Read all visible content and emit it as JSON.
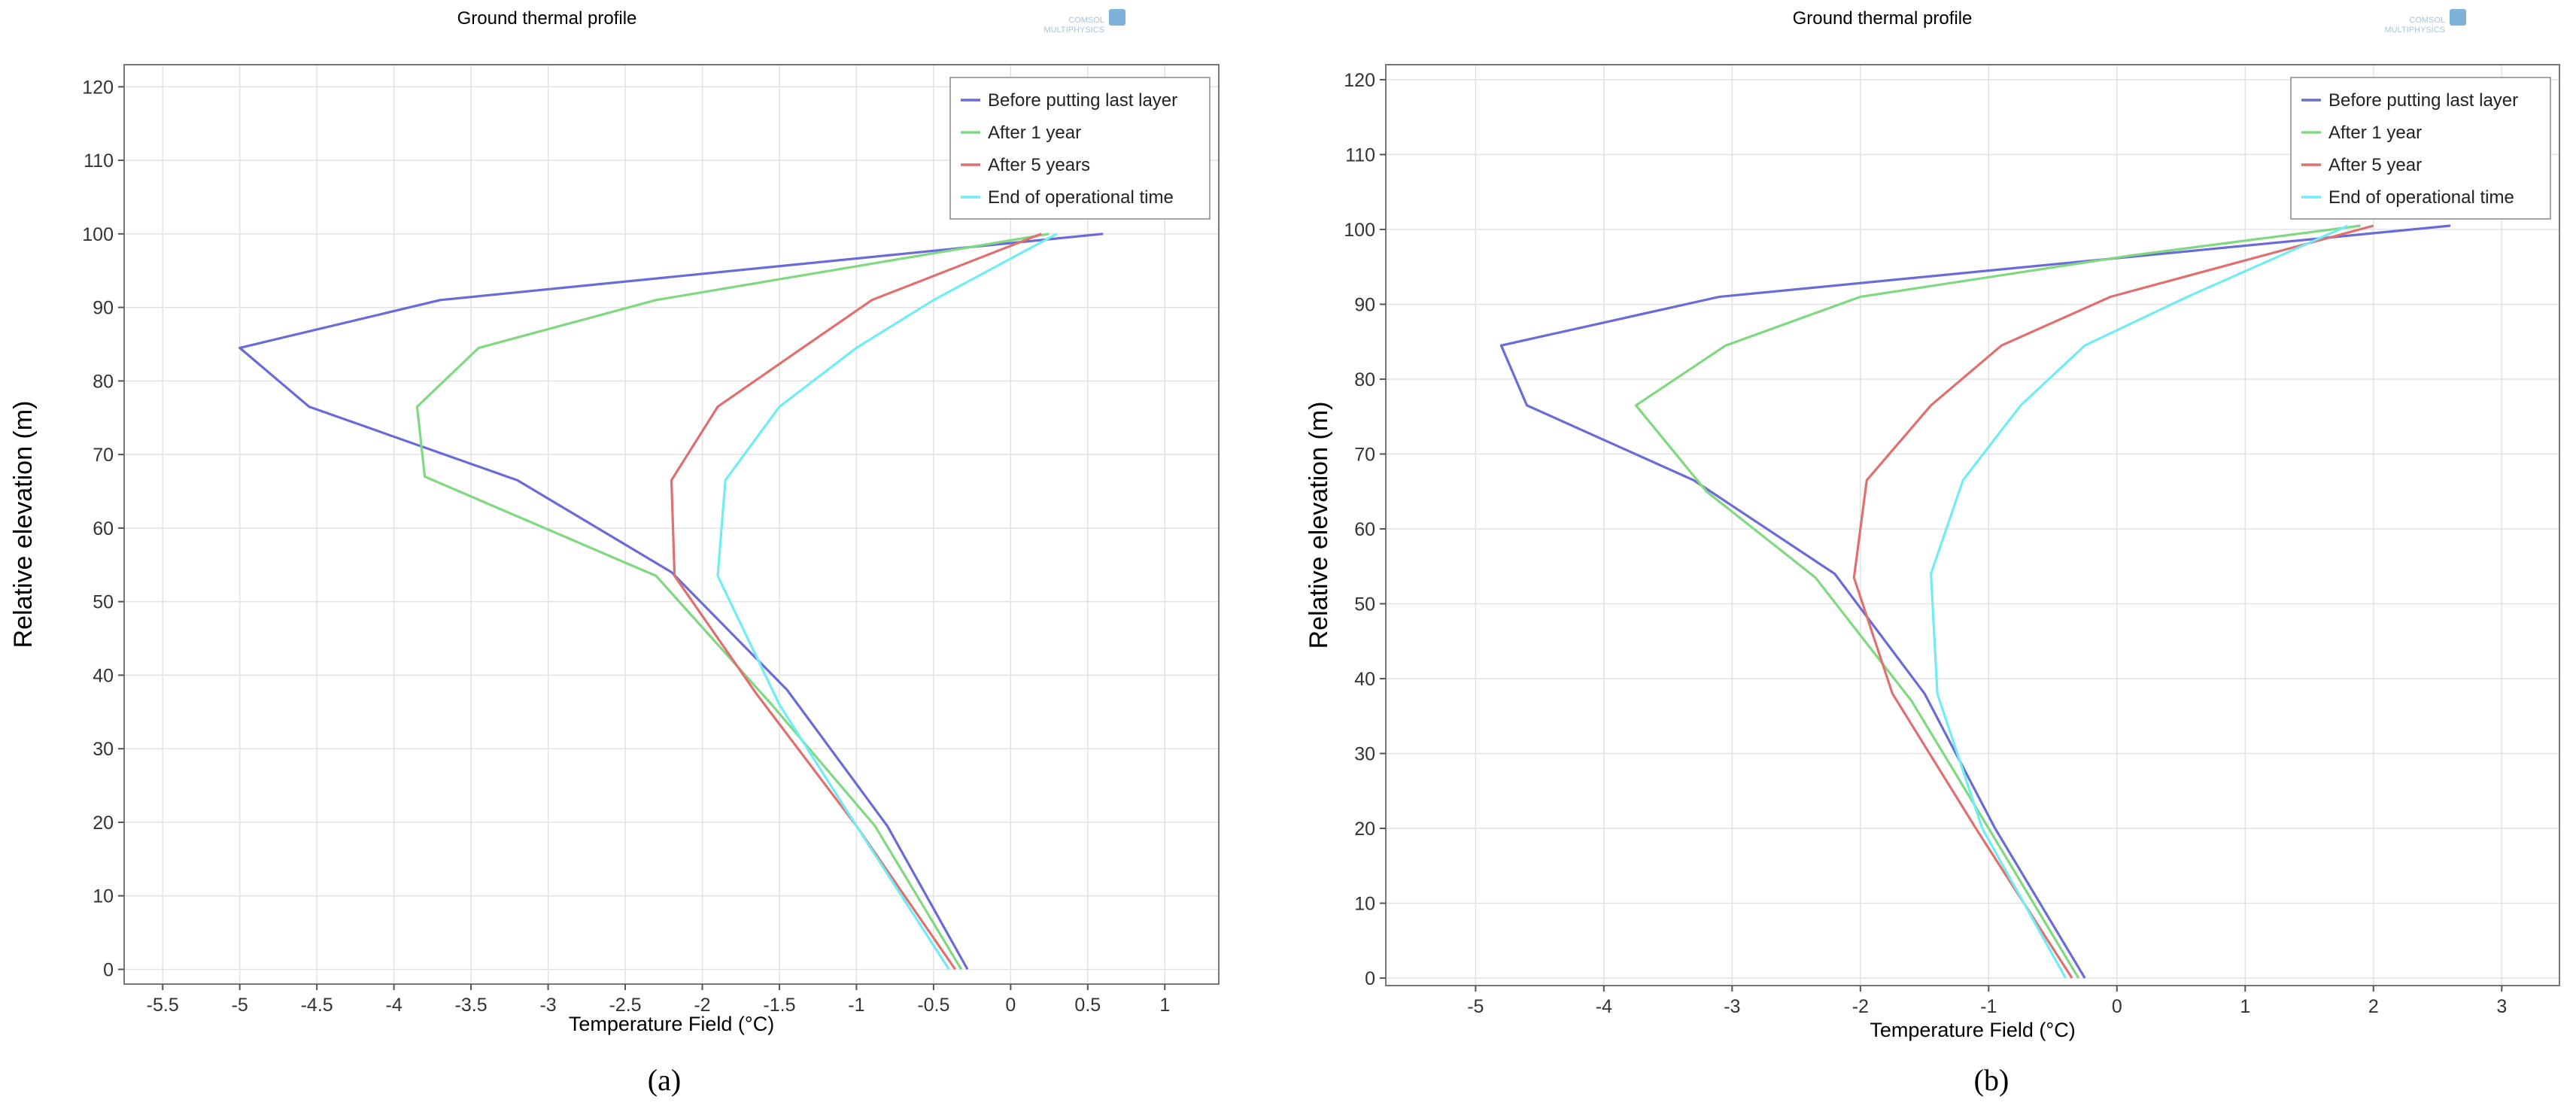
{
  "figure": {
    "captions": [
      "(a)",
      "(b)"
    ],
    "watermark": "COMSOL MULTIPHYSICS",
    "series_colors": [
      "#6b6bd8",
      "#80d880",
      "#e07070",
      "#70ecf4"
    ]
  },
  "chart_data": [
    {
      "type": "line",
      "title": "Ground thermal profile",
      "xlabel": "Temperature Field (°C)",
      "ylabel": "Relative elevation (m)",
      "xlim": [
        -5.75,
        1.35
      ],
      "ylim": [
        -2,
        123
      ],
      "xticks": [
        -5.5,
        -5,
        -4.5,
        -4,
        -3.5,
        -3,
        -2.5,
        -2,
        -1.5,
        -1,
        -0.5,
        0,
        0.5,
        1
      ],
      "xtick_labels": [
        "-5.5",
        "-5",
        "-4.5",
        "-4",
        "-3.5",
        "-3",
        "-2.5",
        "-2",
        "-1.5",
        "-1",
        "-0.5",
        "0",
        "0.5",
        "1"
      ],
      "yticks": [
        0,
        10,
        20,
        30,
        40,
        50,
        60,
        70,
        80,
        90,
        100,
        110,
        120
      ],
      "ytick_labels": [
        "0",
        "10",
        "20",
        "30",
        "40",
        "50",
        "60",
        "70",
        "80",
        "90",
        "100",
        "110",
        "120"
      ],
      "grid": true,
      "legend_position": "top-right",
      "series": [
        {
          "name": "Before putting last layer",
          "x": [
            -0.28,
            -0.8,
            -1.45,
            -2.2,
            -3.2,
            -4.55,
            -5.0,
            -3.7,
            0.6
          ],
          "y": [
            0,
            19.5,
            38,
            54,
            66.5,
            76.5,
            84.5,
            91,
            100
          ]
        },
        {
          "name": "After 1 year",
          "x": [
            -0.32,
            -0.88,
            -1.55,
            -2.3,
            -3.8,
            -3.85,
            -3.45,
            -2.3,
            0.25
          ],
          "y": [
            0,
            19.5,
            36,
            53.5,
            67,
            76.5,
            84.5,
            91,
            100
          ]
        },
        {
          "name": "After 5 years",
          "x": [
            -0.36,
            -1.0,
            -1.65,
            -2.18,
            -2.2,
            -1.9,
            -1.35,
            -0.9,
            0.2
          ],
          "y": [
            0,
            19.5,
            37.5,
            53.5,
            66.5,
            76.5,
            84.5,
            91,
            100
          ]
        },
        {
          "name": "End of operational time",
          "x": [
            -0.4,
            -1.0,
            -1.5,
            -1.9,
            -1.85,
            -1.5,
            -1.0,
            -0.5,
            0.3
          ],
          "y": [
            0,
            19.5,
            36,
            53.5,
            66.5,
            76.5,
            84.5,
            91,
            100
          ]
        }
      ]
    },
    {
      "type": "line",
      "title": "Ground thermal profile",
      "xlabel": "Temperature Field (°C)",
      "ylabel": "Relative elevation (m)",
      "xlim": [
        -5.7,
        3.45
      ],
      "ylim": [
        -1,
        122
      ],
      "xticks": [
        -5,
        -4,
        -3,
        -2,
        -1,
        0,
        1,
        2,
        3
      ],
      "xtick_labels": [
        "-5",
        "-4",
        "-3",
        "-2",
        "-1",
        "0",
        "1",
        "2",
        "3"
      ],
      "yticks": [
        0,
        10,
        20,
        30,
        40,
        50,
        60,
        70,
        80,
        90,
        100,
        110,
        120
      ],
      "ytick_labels": [
        "0",
        "10",
        "20",
        "30",
        "40",
        "50",
        "60",
        "70",
        "80",
        "90",
        "100",
        "110",
        "120"
      ],
      "grid": true,
      "legend_position": "top-right",
      "series": [
        {
          "name": "Before putting last layer",
          "x": [
            -0.25,
            -0.95,
            -1.5,
            -2.2,
            -3.3,
            -4.6,
            -4.8,
            -3.1,
            0.2,
            2.6
          ],
          "y": [
            0,
            20,
            38,
            54,
            66.5,
            76.5,
            84.5,
            91,
            96.5,
            100.5
          ]
        },
        {
          "name": "After 1 year",
          "x": [
            -0.3,
            -1.0,
            -1.6,
            -2.35,
            -3.2,
            -3.75,
            -3.05,
            -2.0,
            0.1,
            1.9
          ],
          "y": [
            0,
            20,
            37,
            53.5,
            65,
            76.5,
            84.5,
            91,
            96.5,
            100.5
          ]
        },
        {
          "name": "After 5 year",
          "x": [
            -0.35,
            -1.1,
            -1.75,
            -2.05,
            -1.95,
            -1.45,
            -0.9,
            -0.05,
            2.0
          ],
          "y": [
            0,
            20,
            38,
            53.5,
            66.5,
            76.5,
            84.5,
            91,
            100.5
          ]
        },
        {
          "name": "End of operational time",
          "x": [
            -0.4,
            -1.05,
            -1.4,
            -1.45,
            -1.2,
            -0.75,
            -0.25,
            0.55,
            1.8
          ],
          "y": [
            0,
            20,
            38,
            54,
            66.5,
            76.5,
            84.5,
            91,
            100.5
          ]
        }
      ]
    }
  ]
}
